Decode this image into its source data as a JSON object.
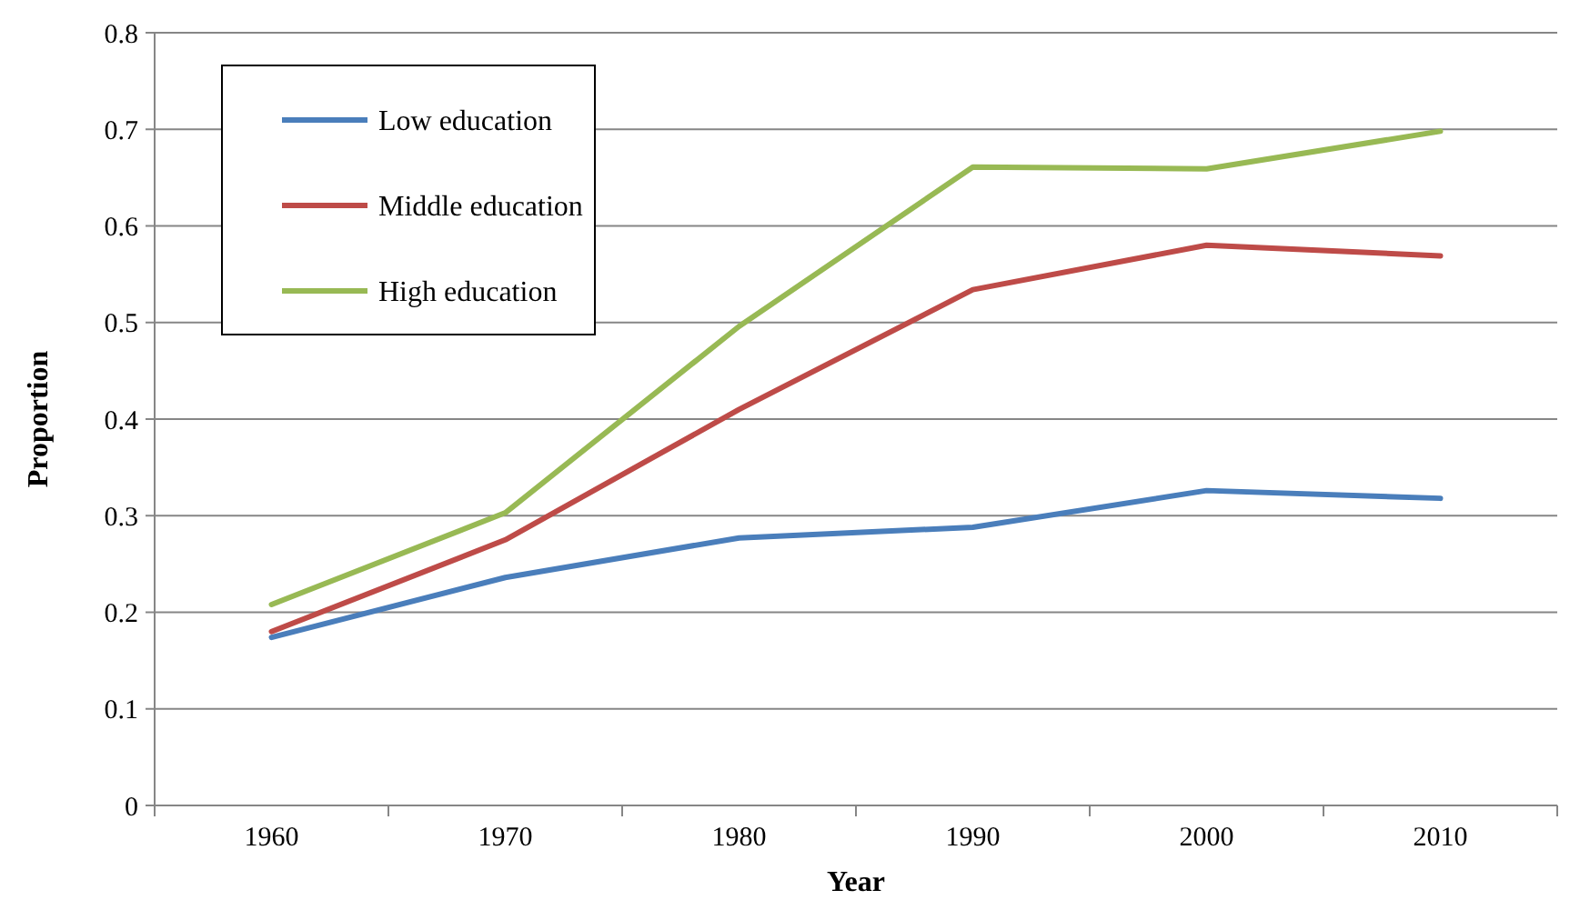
{
  "chart_data": {
    "type": "line",
    "xlabel": "Year",
    "ylabel": "Proportion",
    "categories": [
      "1960",
      "1970",
      "1980",
      "1990",
      "2000",
      "2010"
    ],
    "series": [
      {
        "name": "Low education",
        "color": "#4a7ebb",
        "values": [
          0.174,
          0.236,
          0.277,
          0.288,
          0.326,
          0.318
        ]
      },
      {
        "name": "Middle education",
        "color": "#be4b48",
        "values": [
          0.18,
          0.275,
          0.41,
          0.534,
          0.58,
          0.569
        ]
      },
      {
        "name": "High education",
        "color": "#98b954",
        "values": [
          0.208,
          0.303,
          0.496,
          0.661,
          0.659,
          0.698
        ]
      }
    ],
    "ylim": [
      0,
      0.8
    ],
    "yticks": [
      0,
      0.1,
      0.2,
      0.3,
      0.4,
      0.5,
      0.6,
      0.7,
      0.8
    ],
    "grid": "y",
    "legend": "top left",
    "marker": "none",
    "line_style": "solid"
  }
}
